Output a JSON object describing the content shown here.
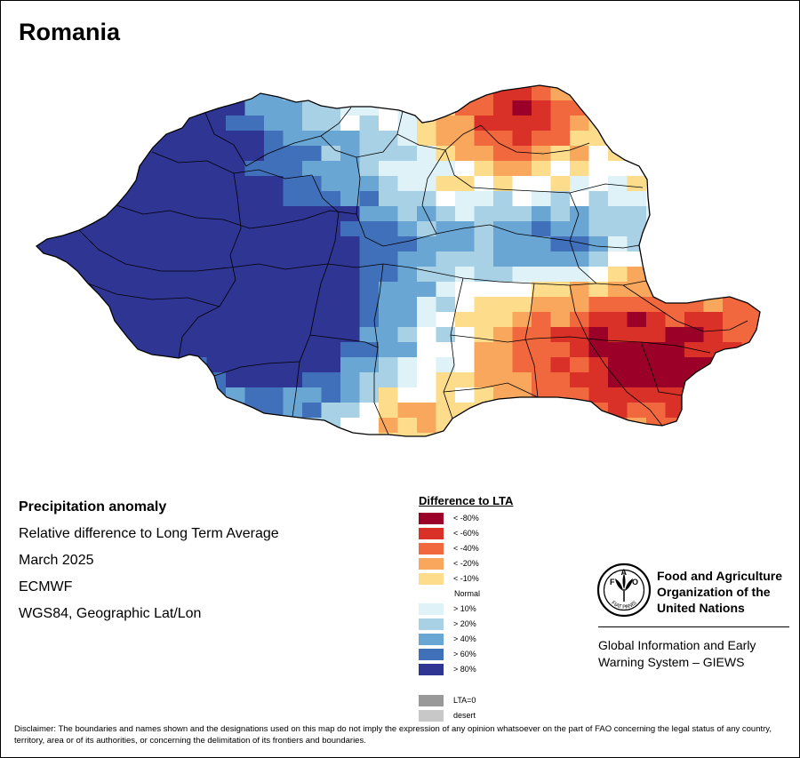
{
  "title": "Romania",
  "info_lines": [
    "Precipitation anomaly",
    "Relative difference to Long Term Average",
    "March 2025",
    "ECMWF",
    "WGS84, Geographic Lat/Lon"
  ],
  "legend": {
    "title": "Difference to LTA",
    "classes": [
      {
        "label": "< -80%",
        "color": "#9b0028"
      },
      {
        "label": "< -60%",
        "color": "#d93027"
      },
      {
        "label": "< -40%",
        "color": "#f2683e"
      },
      {
        "label": "< -20%",
        "color": "#f9a75c"
      },
      {
        "label": "< -10%",
        "color": "#fddd8c"
      },
      {
        "label": "Normal",
        "color": "#ffffff"
      },
      {
        "label": "> 10%",
        "color": "#dff2f8"
      },
      {
        "label": "> 20%",
        "color": "#a9d1e6"
      },
      {
        "label": "> 40%",
        "color": "#6aa6d4"
      },
      {
        "label": "> 60%",
        "color": "#4170ba"
      },
      {
        "label": "> 80%",
        "color": "#2f3593"
      }
    ],
    "special": [
      {
        "label": "LTA=0",
        "color": "#999999"
      },
      {
        "label": "desert",
        "color": "#c8c8c8"
      }
    ]
  },
  "logo": {
    "acronym": "FAO",
    "motto": "FIAT PANIS",
    "org_name": [
      "Food and Agriculture",
      "Organization of the",
      "United Nations"
    ],
    "program": [
      "Global Information and Early",
      "Warning System – GIEWS"
    ]
  },
  "disclaimer": "Disclaimer: The boundaries and names shown and the designations used on this map do not imply the expression of any opinion whatsoever on the part of FAO concerning the legal status of any country, territory, area or of its authorities, or concerning the delimitation of its frontiers and boundaries.",
  "map": {
    "region": "Romania",
    "anomaly_pattern": {
      "west": "> 80%",
      "center": "> 10% to > 40%",
      "northeast": "< -20% to < -60%",
      "southeast": "< -20% to < -60%"
    }
  }
}
